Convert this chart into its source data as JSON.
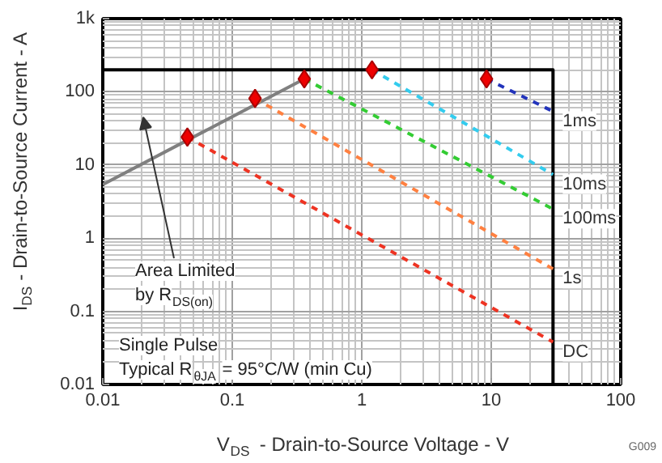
{
  "chart_data": {
    "type": "line",
    "xlabel": "V$_{DS}$ - Drain-to-Source Voltage - V",
    "ylabel": "I$_{DS}$ - Drain-to-Source Current - A",
    "log": "xy",
    "grid": true,
    "line_style": "dashed",
    "xlim": [
      0.01,
      100
    ],
    "ylim": [
      0.01,
      1000
    ],
    "xticks": [
      0.01,
      0.1,
      1,
      10,
      100
    ],
    "yticks": [
      0.01,
      0.1,
      1,
      10,
      100,
      {
        "value": 1000,
        "label": "1k"
      }
    ],
    "annotations": [
      "Area Limited\nby R$_{DS(on)}$",
      "Single Pulse\nTypical R$_{θJA}$ = 95°C/W (min Cu)",
      "G009"
    ],
    "series": [
      {
        "color": "#000000",
        "line_style": "solid",
        "x": [
          0.01,
          30,
          30
        ],
        "values": [
          200,
          200,
          0.01
        ]
      },
      {
        "color": "#808080",
        "line_style": "solid",
        "x": [
          0.01,
          0.36
        ],
        "values": [
          5.4,
          150
        ]
      },
      {
        "name": "1ms",
        "color": "#2233bb",
        "x": [
          9.2,
          30
        ],
        "values": [
          150,
          54
        ]
      },
      {
        "name": "10ms",
        "color": "#33ccee",
        "x": [
          1.2,
          30
        ],
        "values": [
          200,
          7.4
        ]
      },
      {
        "name": "100ms",
        "color": "#33cc33",
        "x": [
          0.36,
          30
        ],
        "values": [
          150,
          2.5
        ]
      },
      {
        "name": "1s",
        "color": "#ff8040",
        "x": [
          0.15,
          30
        ],
        "values": [
          81,
          0.38
        ]
      },
      {
        "name": "DC",
        "color": "#ee3322",
        "x": [
          0.045,
          30
        ],
        "values": [
          24,
          0.038
        ]
      },
      {
        "type": "scatter",
        "marker": "diamond",
        "color": "#ee0000",
        "x": [
          0.045,
          0.15,
          0.36,
          1.2,
          9.2
        ],
        "values": [
          24,
          81,
          150,
          200,
          150
        ]
      }
    ]
  }
}
